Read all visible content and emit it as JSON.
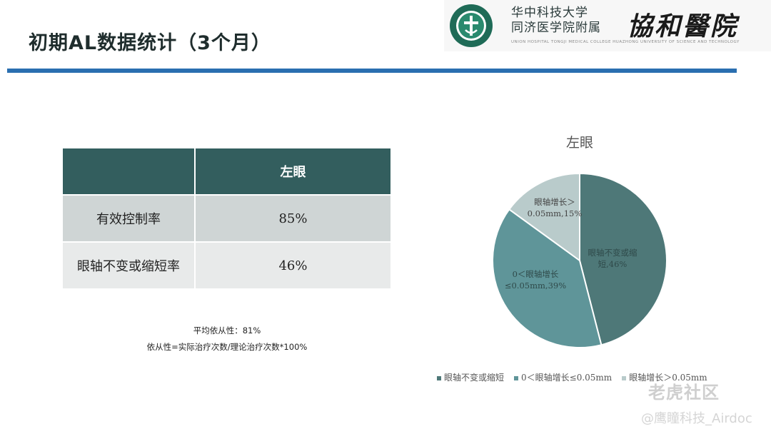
{
  "slide": {
    "title": "初期AL数据统计（3个月）"
  },
  "header": {
    "institution_line1": "华中科技大学",
    "institution_line2": "同济医学院附属",
    "calligraphy": "協和醫院",
    "english_line": "UNION HOSPITAL  TONGJI MEDICAL COLLEGE  HUAZHONG UNIVERSITY OF SCIENCE AND TECHNOLOGY",
    "brand_color": "#2a6fb0"
  },
  "table": {
    "columns": [
      "",
      "左眼"
    ],
    "rows": [
      {
        "label": "有效控制率",
        "value": "85%"
      },
      {
        "label": "眼轴不变或缩短率",
        "value": "46%"
      }
    ]
  },
  "notes": {
    "adherence": "平均依从性：81%",
    "formula": "依从性=实际治疗次数/理论治疗次数*100%"
  },
  "chart_data": {
    "type": "pie",
    "title": "左眼",
    "slices": [
      {
        "name": "眼轴不变或缩短",
        "value": 46,
        "label_lines": [
          "眼轴不变或缩",
          "短,46%"
        ],
        "color": "#4e7878",
        "text_color": "#2f4a4a"
      },
      {
        "name": "0＜眼轴增长≤0.05mm",
        "value": 39,
        "label_lines": [
          "0＜眼轴增长",
          "≤0.05mm,39%"
        ],
        "color": "#5f9599",
        "text_color": "#2f4a4a"
      },
      {
        "name": "眼轴增长＞0.05mm",
        "value": 15,
        "label_lines": [
          "眼轴增长＞",
          "0.05mm,15%"
        ],
        "color": "#b9cbcb",
        "text_color": "#444444"
      }
    ],
    "legend_position": "bottom"
  },
  "watermarks": {
    "community": "老虎社区",
    "author": "@鹰瞳科技_Airdoc"
  }
}
